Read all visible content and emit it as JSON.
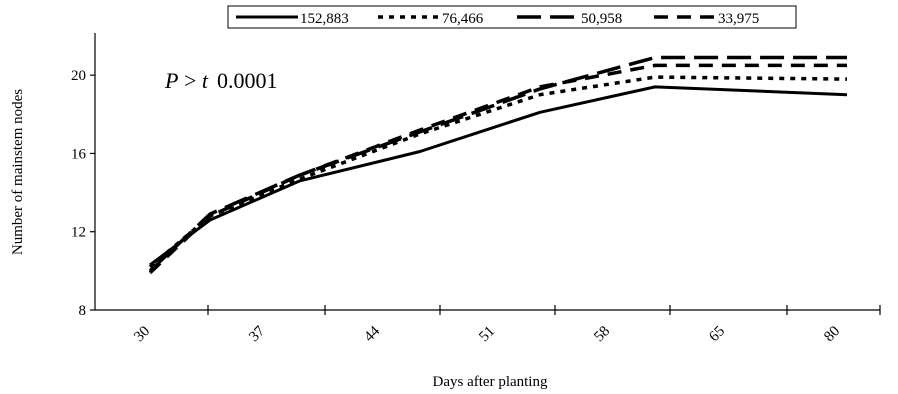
{
  "chart_data": {
    "type": "line",
    "categories": [
      "30",
      "37",
      "44",
      "51",
      "58",
      "65",
      "80"
    ],
    "xlabel": "Days after planting",
    "ylabel": "Number of mainstem nodes",
    "ylim": [
      8,
      22
    ],
    "yticks": [
      8,
      12,
      16,
      20
    ],
    "grid": false,
    "legend_position": "top",
    "annotation": {
      "p_italic": "P",
      "gt": " > ",
      "t_italic": "t",
      "value": "0.0001"
    },
    "series": [
      {
        "name": "152,883",
        "style": "solid",
        "x": [
          30,
          37,
          44,
          51,
          58,
          65,
          80
        ],
        "values": [
          10.3,
          12.6,
          14.6,
          16.1,
          18.1,
          19.4,
          19.0
        ]
      },
      {
        "name": "76,466",
        "style": "dotted",
        "x": [
          30,
          37,
          44,
          51,
          58,
          65,
          80
        ],
        "values": [
          10.2,
          12.8,
          14.7,
          17.0,
          19.0,
          19.9,
          19.8
        ]
      },
      {
        "name": "50,958",
        "style": "long-dash",
        "x": [
          30,
          37,
          44,
          51,
          58,
          65,
          80
        ],
        "values": [
          10.0,
          12.9,
          14.9,
          17.1,
          19.3,
          20.9,
          20.9
        ]
      },
      {
        "name": "33,975",
        "style": "dash",
        "x": [
          30,
          37,
          44,
          51,
          58,
          65,
          80
        ],
        "values": [
          9.9,
          12.8,
          14.9,
          17.2,
          19.4,
          20.5,
          20.5
        ]
      }
    ]
  }
}
